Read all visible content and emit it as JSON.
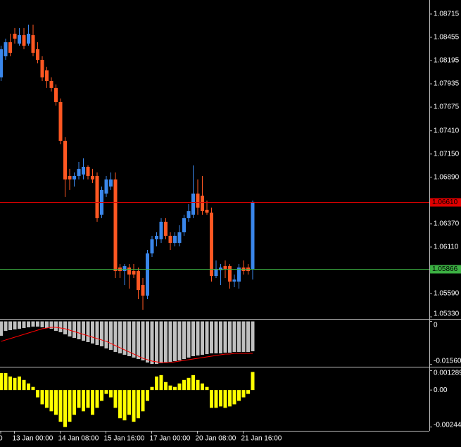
{
  "chart_data": [
    {
      "type": "candlestick",
      "categories": [
        "0",
        null,
        null,
        "13 Jan 00:00",
        null,
        null,
        null,
        null,
        null,
        null,
        null,
        null,
        null,
        "14 Jan 08:00",
        null,
        null,
        null,
        null,
        null,
        null,
        null,
        null,
        null,
        "15 Jan 16:00",
        null,
        null,
        null,
        null,
        null,
        null,
        null,
        null,
        null,
        "17 Jan 00:00",
        null,
        null,
        null,
        null,
        null,
        null,
        null,
        null,
        null,
        "20 Jan 08:00",
        null,
        null,
        null,
        null,
        null,
        null,
        null,
        null,
        null,
        "21 Jan 16:00",
        null,
        null
      ],
      "open": [
        1.08007,
        1.08243,
        1.084,
        1.08495,
        1.08385,
        1.08479,
        1.08385,
        1.08479,
        1.08322,
        1.08203,
        1.08085,
        1.07967,
        1.07889,
        1.07731,
        1.07298,
        1.06905,
        1.06866,
        1.06905,
        1.06921,
        1.07007,
        1.06905,
        1.06905,
        1.06472,
        1.06708,
        1.06787,
        1.06866,
        1.05881,
        1.05842,
        1.05881,
        1.05842,
        1.05842,
        1.05685,
        1.05567,
        1.06039,
        1.06197,
        1.06197,
        1.06393,
        1.06236,
        1.06157,
        1.06157,
        1.06275,
        1.06433,
        1.06472,
        1.06708,
        1.06685,
        1.06527,
        1.06495,
        1.05787,
        1.0585,
        1.05897,
        1.05897,
        1.05724,
        1.05724,
        1.05881,
        1.05881,
        1.05858
      ],
      "high": [
        1.08361,
        1.0844,
        1.08495,
        1.08558,
        1.08558,
        1.08558,
        1.08597,
        1.08597,
        1.084,
        1.08243,
        1.08125,
        1.08007,
        1.07928,
        1.07771,
        1.07338,
        1.06984,
        1.06944,
        1.07062,
        1.07102,
        1.07023,
        1.06984,
        1.06944,
        1.06787,
        1.06905,
        1.06944,
        1.06944,
        1.05921,
        1.05921,
        1.05921,
        1.05921,
        1.05881,
        1.05763,
        1.06078,
        1.06236,
        1.06275,
        1.06433,
        1.06433,
        1.06275,
        1.06275,
        1.06354,
        1.06472,
        1.0659,
        1.07023,
        1.06866,
        1.06905,
        1.0663,
        1.06551,
        1.0596,
        1.05921,
        1.0596,
        1.05921,
        1.05803,
        1.05921,
        1.0596,
        1.05921,
        1.0663
      ],
      "low": [
        1.07967,
        1.08203,
        1.08243,
        1.08385,
        1.08361,
        1.08322,
        1.08361,
        1.08243,
        1.08164,
        1.07967,
        1.07889,
        1.07849,
        1.07692,
        1.07259,
        1.06669,
        1.06748,
        1.06787,
        1.06866,
        1.06866,
        1.06866,
        1.06826,
        1.06393,
        1.06433,
        1.06669,
        1.06748,
        1.05763,
        1.05763,
        1.05685,
        1.05645,
        1.05763,
        1.05527,
        1.05409,
        1.05527,
        1.06,
        1.06118,
        1.06157,
        1.06197,
        1.06078,
        1.06118,
        1.06118,
        1.06236,
        1.06393,
        1.06433,
        1.06472,
        1.06472,
        1.06472,
        1.05724,
        1.05763,
        1.05685,
        1.05763,
        1.05645,
        1.05661,
        1.05645,
        1.05803,
        1.05803,
        1.05747
      ],
      "close": [
        1.08322,
        1.084,
        1.08282,
        1.0844,
        1.08479,
        1.08361,
        1.08495,
        1.08282,
        1.08203,
        1.08007,
        1.07967,
        1.07889,
        1.07731,
        1.07298,
        1.06866,
        1.06866,
        1.06905,
        1.06984,
        1.07007,
        1.06905,
        1.06866,
        1.06433,
        1.06748,
        1.06866,
        1.06866,
        1.05842,
        1.05842,
        1.05897,
        1.05803,
        1.05803,
        1.05629,
        1.05567,
        1.06039,
        1.06197,
        1.06236,
        1.06393,
        1.06236,
        1.06157,
        1.06236,
        1.06275,
        1.06433,
        1.06511,
        1.06708,
        1.06551,
        1.06511,
        1.06495,
        1.05787,
        1.05866,
        1.05881,
        1.05866,
        1.05724,
        1.05747,
        1.05881,
        1.05842,
        1.05842,
        1.06614
      ],
      "up_color": "#3a86ea",
      "down_color": "#ff5722",
      "ylim": [
        1.05307,
        1.08872
      ],
      "yticks": [
        1.08715,
        1.08455,
        1.08195,
        1.07935,
        1.07675,
        {
          "value": 1.0741,
          "label": "1.07410"
        },
        {
          "value": 1.0715,
          "label": "1.07150"
        },
        {
          "value": 1.0689,
          "label": "1.06890"
        },
        {
          "value": 1.0637,
          "label": "1.06370"
        },
        {
          "value": 1.0611,
          "label": "1.06110"
        },
        {
          "value": 1.0559,
          "label": "1.05590"
        },
        {
          "value": 1.0533,
          "label": "1.05330"
        }
      ],
      "lines": [
        {
          "value": 1.0661,
          "label": "1.06610",
          "color": "#e00000"
        },
        {
          "value": 1.05866,
          "color": "#3cb043"
        }
      ]
    },
    {
      "type": "macd",
      "values": [
        -0.00521,
        -0.00342,
        -0.00317,
        -0.00291,
        -0.00266,
        -0.0024,
        -0.00215,
        -0.00189,
        -0.00189,
        -0.00215,
        -0.0024,
        -0.00266,
        -0.00342,
        -0.00393,
        -0.0047,
        -0.00547,
        -0.00598,
        -0.00649,
        -0.007,
        -0.00751,
        -0.00802,
        -0.00853,
        -0.00904,
        -0.00981,
        -0.01032,
        -0.01108,
        -0.0116,
        -0.01211,
        -0.01262,
        -0.01313,
        -0.01364,
        -0.01415,
        -0.01492,
        -0.01543,
        -0.01543,
        -0.01517,
        -0.01492,
        -0.01466,
        -0.0144,
        -0.01415,
        -0.01364,
        -0.01313,
        -0.01262,
        -0.01236,
        -0.01211,
        -0.01185,
        -0.0116,
        -0.0116,
        -0.0116,
        -0.01134,
        -0.01134,
        -0.01108,
        -0.01108,
        -0.01108,
        -0.01108,
        -0.01083
      ],
      "color": "#c0c0c0",
      "signal": {
        "values": [
          -0.00725,
          -0.00674,
          -0.00623,
          -0.00572,
          -0.00521,
          -0.0047,
          -0.00419,
          -0.00368,
          -0.00317,
          -0.00266,
          -0.0024,
          -0.00215,
          -0.00215,
          -0.0024,
          -0.00266,
          -0.00317,
          -0.00368,
          -0.00419,
          -0.0047,
          -0.00521,
          -0.00572,
          -0.00623,
          -0.00674,
          -0.00725,
          -0.00802,
          -0.00879,
          -0.00955,
          -0.01032,
          -0.01108,
          -0.01185,
          -0.01262,
          -0.01338,
          -0.01389,
          -0.0144,
          -0.01466,
          -0.01492,
          -0.01492,
          -0.01492,
          -0.01466,
          -0.0144,
          -0.01415,
          -0.01389,
          -0.01364,
          -0.01338,
          -0.01313,
          -0.01287,
          -0.01262,
          -0.01236,
          -0.01211,
          -0.01185,
          -0.01185,
          -0.0116,
          -0.0116,
          -0.0116,
          -0.0116,
          -0.0116
        ],
        "color": "#ff0000"
      },
      "ylim": [
        -0.0162,
        0.0004
      ],
      "yticks": [
        0,
        -0.015608
      ]
    },
    {
      "type": "histogram",
      "values": [
        0.001129,
        0.001129,
        0.000899,
        0.000807,
        0.000899,
        0.000668,
        0.000438,
        0.000207,
        -0.000484,
        -0.000945,
        -0.001176,
        -0.001406,
        -0.001637,
        -0.002098,
        -0.002447,
        -0.002098,
        -0.001637,
        -0.001176,
        -0.001406,
        -0.001176,
        -0.001637,
        -0.001176,
        -0.000715,
        -0.000254,
        -0.000484,
        -0.001176,
        -0.001867,
        -0.002005,
        -0.001637,
        -0.002098,
        -0.001867,
        -0.001406,
        -0.000715,
        0.000207,
        0.000899,
        0.000991,
        0.00053,
        0.0003,
        0.000207,
        0.000438,
        0.000668,
        0.000807,
        0.000991,
        0.000668,
        0.000438,
        0.000207,
        -0.001176,
        -0.001176,
        -0.001083,
        -0.001176,
        -0.001083,
        -0.000945,
        -0.000715,
        -0.000484,
        -0.000254,
        0.001199
      ],
      "color": "#ffff00",
      "ylim": [
        -0.00265,
        0.00145
      ],
      "yticks": [
        0.001289,
        {
          "value": 0,
          "label": "0.00"
        },
        -0.002447
      ]
    }
  ]
}
